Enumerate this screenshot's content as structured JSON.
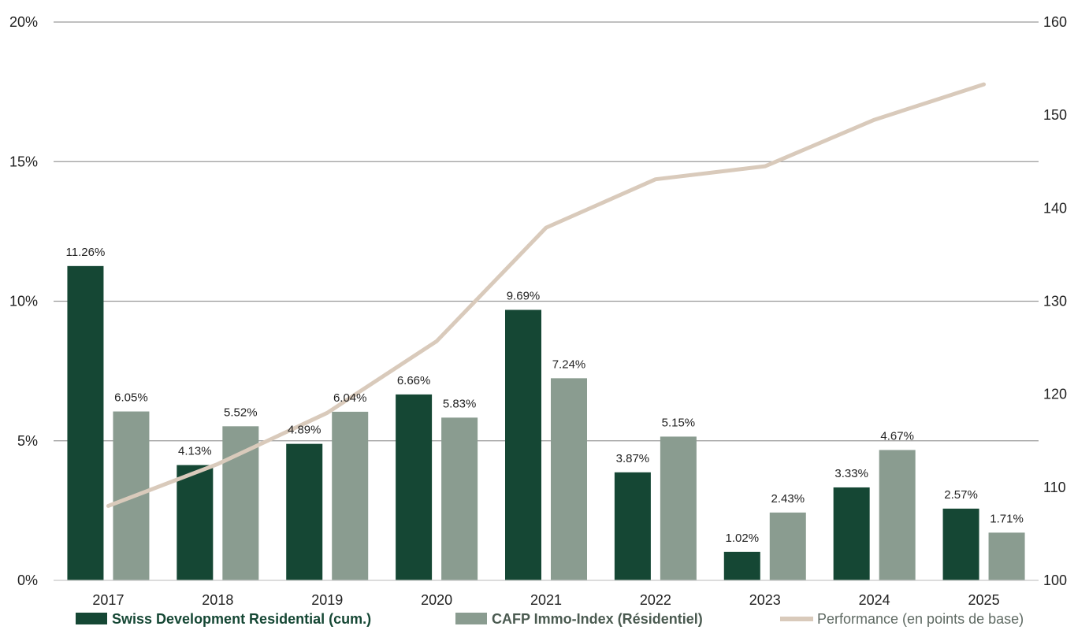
{
  "chart_data": {
    "type": "bar",
    "categories": [
      "2017",
      "2018",
      "2019",
      "2020",
      "2021",
      "2022",
      "2023",
      "2024",
      "2025"
    ],
    "series": [
      {
        "name": "Swiss Development Residential (cum.)",
        "values": [
          11.26,
          4.13,
          4.89,
          6.66,
          9.69,
          3.87,
          1.02,
          3.33,
          2.57
        ],
        "labels": [
          "11.26%",
          "4.13%",
          "4.89%",
          "6.66%",
          "9.69%",
          "3.87%",
          "1.02%",
          "3.33%",
          "2.57%"
        ],
        "color": "#154734",
        "axis": "left"
      },
      {
        "name": "CAFP Immo-Index (Résidentiel)",
        "values": [
          6.05,
          5.52,
          6.04,
          5.83,
          7.24,
          5.15,
          2.43,
          4.67,
          1.71
        ],
        "labels": [
          "6.05%",
          "5.52%",
          "6.04%",
          "5.83%",
          "7.24%",
          "5.15%",
          "2.43%",
          "4.67%",
          "1.71%"
        ],
        "color": "#8a9c90",
        "axis": "left"
      },
      {
        "name": "Performance (en points de base)",
        "type": "line",
        "values": [
          108,
          112.5,
          118,
          125.7,
          137.9,
          143.1,
          144.5,
          149.5,
          153.3
        ],
        "color": "#d9cabb",
        "axis": "right"
      }
    ],
    "y_left": {
      "ticks": [
        "0%",
        "5%",
        "10%",
        "15%",
        "20%"
      ],
      "ylim": [
        0,
        20
      ]
    },
    "y_right": {
      "ticks": [
        "100",
        "110",
        "120",
        "130",
        "140",
        "150",
        "160"
      ],
      "ylim": [
        100,
        160
      ]
    },
    "grid": true,
    "legend_position": "bottom"
  }
}
